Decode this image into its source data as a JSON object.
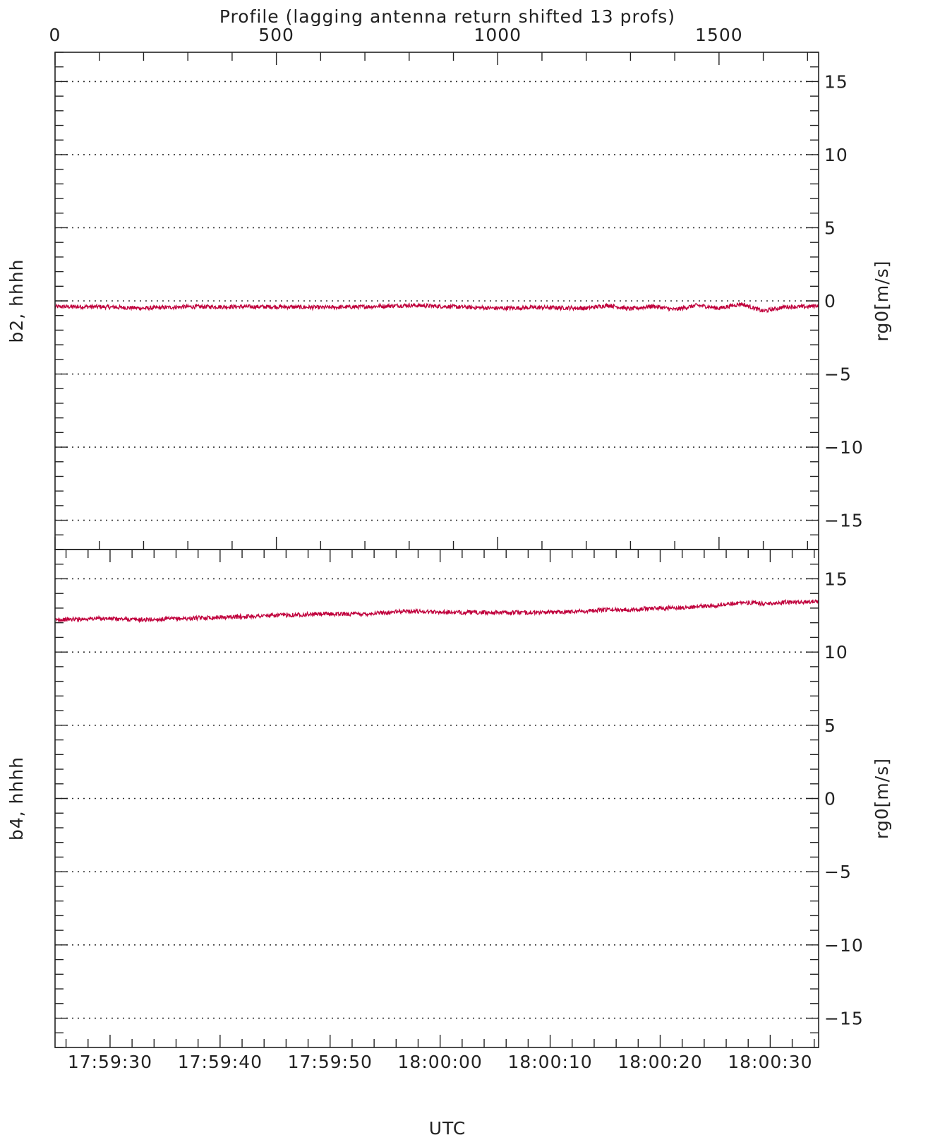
{
  "chart_data": {
    "type": "line",
    "grid": true,
    "series_color": "#c0003c",
    "line_color_hex": "#c0003c",
    "top_axis": {
      "label": "Profile (lagging antenna return shifted 13 profs)",
      "range": [
        0,
        1725
      ],
      "ticks": [
        "0",
        "500",
        "1000",
        "1500"
      ],
      "tick_values": [
        0,
        500,
        1000,
        1500
      ]
    },
    "bottom_axis": {
      "label": "UTC",
      "ticks": [
        "17:59:30",
        "17:59:40",
        "17:59:50",
        "18:00:00",
        "18:00:10",
        "18:00:20",
        "18:00:30"
      ],
      "tick_values": [
        0,
        10,
        20,
        30,
        40,
        50,
        60
      ],
      "range_seconds_from_17_59_30": [
        -5,
        64.4
      ]
    },
    "panels": [
      {
        "name": "b2, hhhh",
        "ylabel": "rg0[m/s]",
        "ylim": [
          -17,
          17
        ],
        "yticks": [
          "15",
          "10",
          "5",
          "0",
          "−5",
          "−10",
          "−15"
        ],
        "ytick_values": [
          15,
          10,
          5,
          0,
          -5,
          -10,
          -15
        ],
        "x": [
          0,
          100,
          200,
          300,
          400,
          500,
          600,
          700,
          800,
          900,
          1000,
          1100,
          1200,
          1250,
          1300,
          1350,
          1400,
          1450,
          1500,
          1550,
          1600,
          1650,
          1700,
          1725
        ],
        "values": [
          -0.4,
          -0.4,
          -0.5,
          -0.4,
          -0.4,
          -0.4,
          -0.45,
          -0.4,
          -0.3,
          -0.4,
          -0.5,
          -0.45,
          -0.5,
          -0.3,
          -0.55,
          -0.35,
          -0.6,
          -0.3,
          -0.5,
          -0.2,
          -0.7,
          -0.4,
          -0.4,
          -0.3
        ]
      },
      {
        "name": "b4, hhhh",
        "ylabel": "rg0[m/s]",
        "ylim": [
          -17,
          17
        ],
        "yticks": [
          "15",
          "10",
          "5",
          "0",
          "−5",
          "−10",
          "−15"
        ],
        "ytick_values": [
          15,
          10,
          5,
          0,
          -5,
          -10,
          -15
        ],
        "x": [
          0,
          100,
          200,
          300,
          400,
          500,
          600,
          700,
          800,
          900,
          1000,
          1100,
          1200,
          1250,
          1300,
          1350,
          1400,
          1450,
          1500,
          1550,
          1600,
          1650,
          1700,
          1725
        ],
        "values": [
          12.2,
          12.3,
          12.2,
          12.3,
          12.4,
          12.5,
          12.6,
          12.6,
          12.8,
          12.7,
          12.7,
          12.7,
          12.8,
          12.9,
          12.9,
          13.0,
          13.0,
          13.1,
          13.2,
          13.4,
          13.3,
          13.4,
          13.4,
          13.5
        ]
      }
    ]
  }
}
